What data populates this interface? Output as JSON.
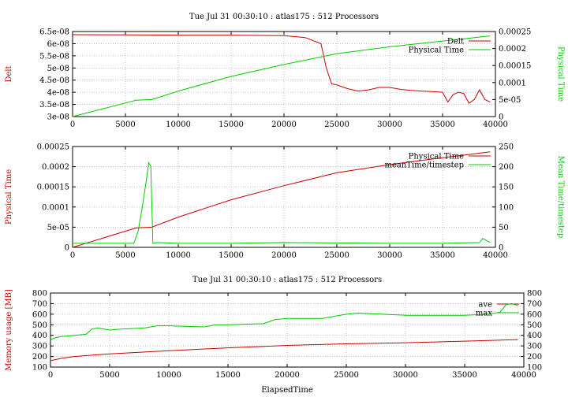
{
  "chart_data": [
    {
      "type": "line",
      "title": "Tue Jul 31 00:30:10 : atlas175 : 512 Processors",
      "xlabel": "",
      "ylabel": "Delt",
      "y2label": "Physical Time",
      "xlim": [
        0,
        40000
      ],
      "ylim": [
        3e-08,
        6.5e-08
      ],
      "y2lim": [
        0,
        0.00025
      ],
      "xticks": [
        "0",
        "5000",
        "10000",
        "15000",
        "20000",
        "25000",
        "30000",
        "35000",
        "40000"
      ],
      "yticks": [
        "3e-08",
        "3.5e-08",
        "4e-08",
        "4.5e-08",
        "5e-08",
        "5.5e-08",
        "6e-08",
        "6.5e-08"
      ],
      "y2ticks": [
        "0",
        "5e-05",
        "0.0001",
        "0.00015",
        "0.0002",
        "0.00025"
      ],
      "legend_position": "top-right",
      "grid": true,
      "colors": {
        "series1": "#cc0000",
        "series2": "#00cc00"
      },
      "series": [
        {
          "name": "Delt",
          "axis": "left",
          "x": [
            0,
            5000,
            10000,
            15000,
            20000,
            22000,
            23500,
            24000,
            24500,
            25000,
            26000,
            27000,
            28000,
            29000,
            30000,
            31000,
            32000,
            33000,
            34000,
            35000,
            35500,
            36000,
            36500,
            37000,
            37500,
            38000,
            38500,
            39000,
            39500
          ],
          "y": [
            6.37e-08,
            6.36e-08,
            6.35e-08,
            6.35e-08,
            6.33e-08,
            6.25e-08,
            6e-08,
            5e-08,
            4.35e-08,
            4.3e-08,
            4.15e-08,
            4.05e-08,
            4.1e-08,
            4.2e-08,
            4.2e-08,
            4.12e-08,
            4.08e-08,
            4.05e-08,
            4.03e-08,
            4e-08,
            3.6e-08,
            3.9e-08,
            4e-08,
            3.95e-08,
            3.55e-08,
            3.7e-08,
            4.1e-08,
            3.7e-08,
            3.6e-08
          ]
        },
        {
          "name": "Physical Time",
          "axis": "right",
          "x": [
            0,
            6000,
            7500,
            10000,
            15000,
            20000,
            25000,
            30000,
            35000,
            39500
          ],
          "y": [
            0,
            4.8e-05,
            5e-05,
            7.5e-05,
            0.000118,
            0.000153,
            0.000185,
            0.000205,
            0.000222,
            0.000237
          ]
        }
      ]
    },
    {
      "type": "line",
      "title": "",
      "xlabel": "",
      "ylabel": "Physical Time",
      "y2label": "Mean Time/timestep",
      "xlim": [
        0,
        40000
      ],
      "ylim": [
        0,
        0.00025
      ],
      "y2lim": [
        0,
        250
      ],
      "xticks": [
        "0",
        "5000",
        "10000",
        "15000",
        "20000",
        "25000",
        "30000",
        "35000",
        "40000"
      ],
      "yticks": [
        "0",
        "5e-05",
        "0.0001",
        "0.00015",
        "0.0002",
        "0.00025"
      ],
      "y2ticks": [
        "0",
        "50",
        "100",
        "150",
        "200",
        "250"
      ],
      "legend_position": "top-right",
      "grid": true,
      "colors": {
        "series1": "#cc0000",
        "series2": "#00cc00"
      },
      "series": [
        {
          "name": "Physical Time",
          "axis": "left",
          "x": [
            0,
            6000,
            7500,
            10000,
            15000,
            20000,
            25000,
            30000,
            35000,
            39500
          ],
          "y": [
            0,
            4.8e-05,
            5e-05,
            7.5e-05,
            0.000118,
            0.000153,
            0.000185,
            0.000205,
            0.000222,
            0.000237
          ]
        },
        {
          "name": "meanTime/timestep",
          "axis": "right",
          "x": [
            0,
            5800,
            6200,
            6600,
            7000,
            7200,
            7400,
            7600,
            8000,
            10000,
            15000,
            20000,
            25000,
            30000,
            35000,
            38500,
            38800,
            39500
          ],
          "y": [
            10,
            10,
            40,
            100,
            170,
            210,
            200,
            10,
            12,
            10,
            10,
            12,
            11,
            10,
            10,
            12,
            22,
            12
          ]
        }
      ]
    },
    {
      "type": "line",
      "title": "Tue Jul 31 00:30:10 : atlas175 : 512 Processors",
      "xlabel": "ElapsedTime",
      "ylabel": "Memory usage [MB]",
      "y2label": "",
      "xlim": [
        0,
        40000
      ],
      "ylim": [
        100,
        800
      ],
      "y2lim": [
        100,
        800
      ],
      "xticks": [
        "0",
        "5000",
        "10000",
        "15000",
        "20000",
        "25000",
        "30000",
        "35000",
        "40000"
      ],
      "yticks": [
        "100",
        "200",
        "300",
        "400",
        "500",
        "600",
        "700",
        "800"
      ],
      "y2ticks": [
        "100",
        "200",
        "300",
        "400",
        "500",
        "600",
        "700",
        "800"
      ],
      "legend_position": "top-right",
      "grid": true,
      "colors": {
        "series1": "#cc0000",
        "series2": "#00cc00"
      },
      "series": [
        {
          "name": "ave",
          "axis": "left",
          "x": [
            0,
            1000,
            2000,
            5000,
            10000,
            15000,
            20000,
            25000,
            30000,
            35000,
            39500
          ],
          "y": [
            160,
            185,
            200,
            225,
            255,
            282,
            305,
            320,
            330,
            345,
            360
          ]
        },
        {
          "name": "max",
          "axis": "left",
          "x": [
            0,
            500,
            1000,
            2000,
            3000,
            3500,
            4000,
            5000,
            6000,
            8000,
            9000,
            10000,
            13000,
            14000,
            15000,
            18000,
            19000,
            20000,
            23000,
            24000,
            25000,
            26000,
            30000,
            35000,
            37000,
            38000,
            38500,
            39000,
            39500
          ],
          "y": [
            360,
            380,
            390,
            400,
            410,
            460,
            470,
            450,
            460,
            470,
            490,
            490,
            480,
            500,
            500,
            510,
            550,
            560,
            560,
            580,
            600,
            610,
            590,
            590,
            600,
            620,
            690,
            700,
            680
          ]
        }
      ]
    }
  ]
}
